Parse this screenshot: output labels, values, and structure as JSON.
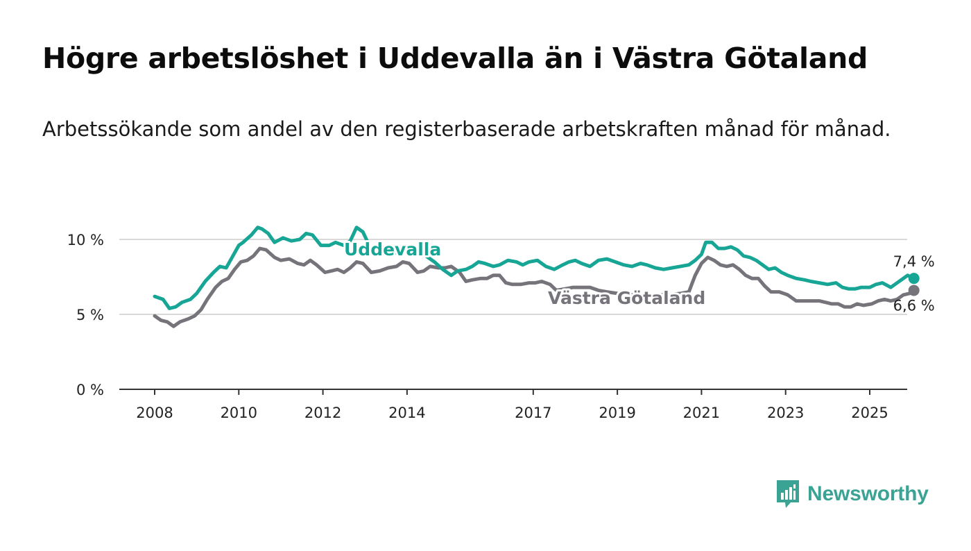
{
  "header": {
    "title": "Högre arbetslöshet i Uddevalla än i Västra Götaland",
    "subtitle": "Arbetssökande som andel av den registerbaserade arbetskraften månad för månad."
  },
  "colors": {
    "uddevalla": "#17a595",
    "vastra_gotaland": "#76747a",
    "grid": "#d9d9d9",
    "axis": "#333333",
    "logo": "#3aa394"
  },
  "logo": {
    "text": "Newsworthy",
    "icon": "bar-chart-speech-bubble-icon"
  },
  "chart_data": {
    "type": "line",
    "title": "Högre arbetslöshet i Uddevalla än i Västra Götaland",
    "subtitle": "Arbetssökande som andel av den registerbaserade arbetskraften månad för månad.",
    "ylim": [
      0,
      11
    ],
    "y_ticks": [
      0,
      5,
      10
    ],
    "y_tick_labels": [
      "0 %",
      "5 %",
      "10 %"
    ],
    "x_range": [
      2007.2,
      2025.9
    ],
    "x_ticks": [
      2008,
      2010,
      2012,
      2014,
      2017,
      2019,
      2021,
      2023,
      2025
    ],
    "x_tick_labels": [
      "2008",
      "2010",
      "2012",
      "2014",
      "2017",
      "2019",
      "2021",
      "2023",
      "2025"
    ],
    "grid": true,
    "series": [
      {
        "name": "Uddevalla",
        "key": "uddevalla",
        "end_label": "7,4 %",
        "points": [
          [
            2008.0,
            6.2
          ],
          [
            2008.2,
            6.0
          ],
          [
            2008.35,
            5.4
          ],
          [
            2008.5,
            5.5
          ],
          [
            2008.65,
            5.8
          ],
          [
            2008.85,
            6.0
          ],
          [
            2009.0,
            6.4
          ],
          [
            2009.2,
            7.2
          ],
          [
            2009.4,
            7.8
          ],
          [
            2009.55,
            8.2
          ],
          [
            2009.7,
            8.1
          ],
          [
            2009.8,
            8.6
          ],
          [
            2010.0,
            9.6
          ],
          [
            2010.1,
            9.8
          ],
          [
            2010.3,
            10.3
          ],
          [
            2010.45,
            10.8
          ],
          [
            2010.55,
            10.7
          ],
          [
            2010.7,
            10.4
          ],
          [
            2010.85,
            9.8
          ],
          [
            2011.05,
            10.1
          ],
          [
            2011.25,
            9.9
          ],
          [
            2011.45,
            10.0
          ],
          [
            2011.6,
            10.4
          ],
          [
            2011.75,
            10.3
          ],
          [
            2011.95,
            9.6
          ],
          [
            2012.15,
            9.6
          ],
          [
            2012.3,
            9.8
          ],
          [
            2012.5,
            9.6
          ],
          [
            2012.65,
            9.9
          ],
          [
            2012.8,
            10.8
          ],
          [
            2012.95,
            10.5
          ],
          [
            2013.05,
            9.9
          ],
          [
            2013.2,
            9.0
          ],
          [
            2013.35,
            9.0
          ],
          [
            2013.6,
            9.1
          ],
          [
            2013.85,
            9.1
          ],
          [
            2014.05,
            9.3
          ],
          [
            2014.25,
            9.1
          ],
          [
            2014.45,
            8.9
          ],
          [
            2014.65,
            8.5
          ],
          [
            2014.85,
            8.0
          ],
          [
            2015.05,
            7.6
          ],
          [
            2015.2,
            7.9
          ],
          [
            2015.4,
            8.0
          ],
          [
            2015.55,
            8.2
          ],
          [
            2015.7,
            8.5
          ],
          [
            2015.85,
            8.4
          ],
          [
            2016.05,
            8.2
          ],
          [
            2016.2,
            8.3
          ],
          [
            2016.4,
            8.6
          ],
          [
            2016.6,
            8.5
          ],
          [
            2016.75,
            8.3
          ],
          [
            2016.9,
            8.5
          ],
          [
            2017.1,
            8.6
          ],
          [
            2017.3,
            8.2
          ],
          [
            2017.5,
            8.0
          ],
          [
            2017.7,
            8.3
          ],
          [
            2017.85,
            8.5
          ],
          [
            2018.0,
            8.6
          ],
          [
            2018.15,
            8.4
          ],
          [
            2018.35,
            8.2
          ],
          [
            2018.55,
            8.6
          ],
          [
            2018.75,
            8.7
          ],
          [
            2018.95,
            8.5
          ],
          [
            2019.15,
            8.3
          ],
          [
            2019.35,
            8.2
          ],
          [
            2019.55,
            8.4
          ],
          [
            2019.7,
            8.3
          ],
          [
            2019.9,
            8.1
          ],
          [
            2020.1,
            8.0
          ],
          [
            2020.3,
            8.1
          ],
          [
            2020.5,
            8.2
          ],
          [
            2020.7,
            8.3
          ],
          [
            2020.85,
            8.6
          ],
          [
            2021.0,
            9.0
          ],
          [
            2021.1,
            9.8
          ],
          [
            2021.25,
            9.8
          ],
          [
            2021.4,
            9.4
          ],
          [
            2021.55,
            9.4
          ],
          [
            2021.7,
            9.5
          ],
          [
            2021.85,
            9.3
          ],
          [
            2022.0,
            8.9
          ],
          [
            2022.15,
            8.8
          ],
          [
            2022.3,
            8.6
          ],
          [
            2022.45,
            8.3
          ],
          [
            2022.6,
            8.0
          ],
          [
            2022.75,
            8.1
          ],
          [
            2022.9,
            7.8
          ],
          [
            2023.05,
            7.6
          ],
          [
            2023.25,
            7.4
          ],
          [
            2023.45,
            7.3
          ],
          [
            2023.6,
            7.2
          ],
          [
            2023.8,
            7.1
          ],
          [
            2024.0,
            7.0
          ],
          [
            2024.2,
            7.1
          ],
          [
            2024.35,
            6.8
          ],
          [
            2024.5,
            6.7
          ],
          [
            2024.65,
            6.7
          ],
          [
            2024.8,
            6.8
          ],
          [
            2025.0,
            6.8
          ],
          [
            2025.15,
            7.0
          ],
          [
            2025.3,
            7.1
          ],
          [
            2025.5,
            6.8
          ],
          [
            2025.65,
            7.1
          ],
          [
            2025.75,
            7.3
          ],
          [
            2025.9,
            7.6
          ],
          [
            2026.05,
            7.4
          ]
        ]
      },
      {
        "name": "Västra Götaland",
        "key": "vastra_gotaland",
        "end_label": "6,6 %",
        "points": [
          [
            2008.0,
            4.9
          ],
          [
            2008.15,
            4.6
          ],
          [
            2008.3,
            4.5
          ],
          [
            2008.45,
            4.2
          ],
          [
            2008.6,
            4.5
          ],
          [
            2008.8,
            4.7
          ],
          [
            2008.95,
            4.9
          ],
          [
            2009.1,
            5.3
          ],
          [
            2009.25,
            6.0
          ],
          [
            2009.45,
            6.8
          ],
          [
            2009.6,
            7.2
          ],
          [
            2009.75,
            7.4
          ],
          [
            2009.9,
            8.0
          ],
          [
            2010.05,
            8.5
          ],
          [
            2010.2,
            8.6
          ],
          [
            2010.35,
            8.9
          ],
          [
            2010.5,
            9.4
          ],
          [
            2010.65,
            9.3
          ],
          [
            2010.85,
            8.8
          ],
          [
            2011.0,
            8.6
          ],
          [
            2011.2,
            8.7
          ],
          [
            2011.4,
            8.4
          ],
          [
            2011.55,
            8.3
          ],
          [
            2011.7,
            8.6
          ],
          [
            2011.85,
            8.3
          ],
          [
            2012.05,
            7.8
          ],
          [
            2012.2,
            7.9
          ],
          [
            2012.35,
            8.0
          ],
          [
            2012.5,
            7.8
          ],
          [
            2012.65,
            8.1
          ],
          [
            2012.8,
            8.5
          ],
          [
            2012.95,
            8.4
          ],
          [
            2013.15,
            7.8
          ],
          [
            2013.35,
            7.9
          ],
          [
            2013.55,
            8.1
          ],
          [
            2013.75,
            8.2
          ],
          [
            2013.9,
            8.5
          ],
          [
            2014.05,
            8.4
          ],
          [
            2014.25,
            7.8
          ],
          [
            2014.4,
            7.9
          ],
          [
            2014.55,
            8.2
          ],
          [
            2014.75,
            8.1
          ],
          [
            2014.9,
            8.1
          ],
          [
            2015.05,
            8.2
          ],
          [
            2015.25,
            7.8
          ],
          [
            2015.4,
            7.2
          ],
          [
            2015.55,
            7.3
          ],
          [
            2015.75,
            7.4
          ],
          [
            2015.9,
            7.4
          ],
          [
            2016.05,
            7.6
          ],
          [
            2016.2,
            7.6
          ],
          [
            2016.35,
            7.1
          ],
          [
            2016.5,
            7.0
          ],
          [
            2016.7,
            7.0
          ],
          [
            2016.9,
            7.1
          ],
          [
            2017.05,
            7.1
          ],
          [
            2017.2,
            7.2
          ],
          [
            2017.4,
            7.0
          ],
          [
            2017.55,
            6.6
          ],
          [
            2017.75,
            6.7
          ],
          [
            2017.95,
            6.8
          ],
          [
            2018.15,
            6.8
          ],
          [
            2018.35,
            6.8
          ],
          [
            2018.55,
            6.6
          ],
          [
            2018.75,
            6.5
          ],
          [
            2019.0,
            6.4
          ],
          [
            2019.3,
            6.3
          ],
          [
            2019.6,
            6.3
          ],
          [
            2019.9,
            6.3
          ],
          [
            2020.2,
            6.3
          ],
          [
            2020.5,
            6.4
          ],
          [
            2020.7,
            6.5
          ],
          [
            2020.85,
            7.6
          ],
          [
            2021.0,
            8.4
          ],
          [
            2021.15,
            8.8
          ],
          [
            2021.3,
            8.6
          ],
          [
            2021.45,
            8.3
          ],
          [
            2021.6,
            8.2
          ],
          [
            2021.75,
            8.3
          ],
          [
            2021.9,
            8.0
          ],
          [
            2022.05,
            7.6
          ],
          [
            2022.2,
            7.4
          ],
          [
            2022.35,
            7.4
          ],
          [
            2022.5,
            6.9
          ],
          [
            2022.65,
            6.5
          ],
          [
            2022.85,
            6.5
          ],
          [
            2023.05,
            6.3
          ],
          [
            2023.25,
            5.9
          ],
          [
            2023.45,
            5.9
          ],
          [
            2023.6,
            5.9
          ],
          [
            2023.8,
            5.9
          ],
          [
            2023.95,
            5.8
          ],
          [
            2024.1,
            5.7
          ],
          [
            2024.25,
            5.7
          ],
          [
            2024.4,
            5.5
          ],
          [
            2024.55,
            5.5
          ],
          [
            2024.7,
            5.7
          ],
          [
            2024.85,
            5.6
          ],
          [
            2025.05,
            5.7
          ],
          [
            2025.2,
            5.9
          ],
          [
            2025.35,
            6.0
          ],
          [
            2025.5,
            5.9
          ],
          [
            2025.65,
            6.0
          ],
          [
            2025.8,
            6.3
          ],
          [
            2025.95,
            6.4
          ],
          [
            2026.05,
            6.6
          ]
        ]
      }
    ],
    "series_labels": [
      {
        "series": "uddevalla",
        "text": "Uddevalla"
      },
      {
        "series": "vastra_gotaland",
        "text": "Västra Götaland"
      }
    ]
  }
}
